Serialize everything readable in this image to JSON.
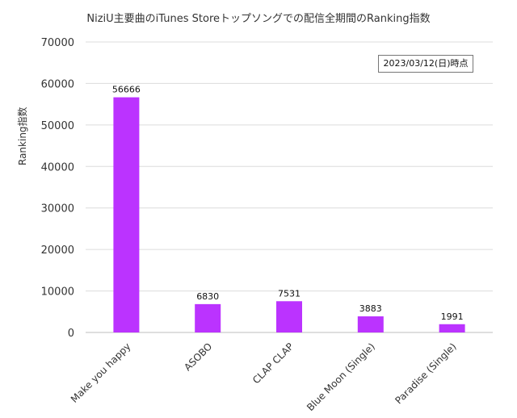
{
  "chart_data": {
    "type": "bar",
    "title": "NiziU主要曲のiTunes Storeトップソングでの配信全期間のRanking指数",
    "annotation": "2023/03/12(日)時点",
    "xlabel": "",
    "ylabel": "Ranking指数",
    "categories": [
      "Make you happy",
      "ASOBO",
      "CLAP CLAP",
      "Blue Moon (Single)",
      "Paradise (Single)"
    ],
    "values": [
      56666,
      6830,
      7531,
      3883,
      1991
    ],
    "ylim": [
      0,
      70000
    ],
    "yticks": [
      0,
      10000,
      20000,
      30000,
      40000,
      50000,
      60000,
      70000
    ],
    "grid": true,
    "bar_color": "#bb33ff",
    "legend": "none"
  }
}
